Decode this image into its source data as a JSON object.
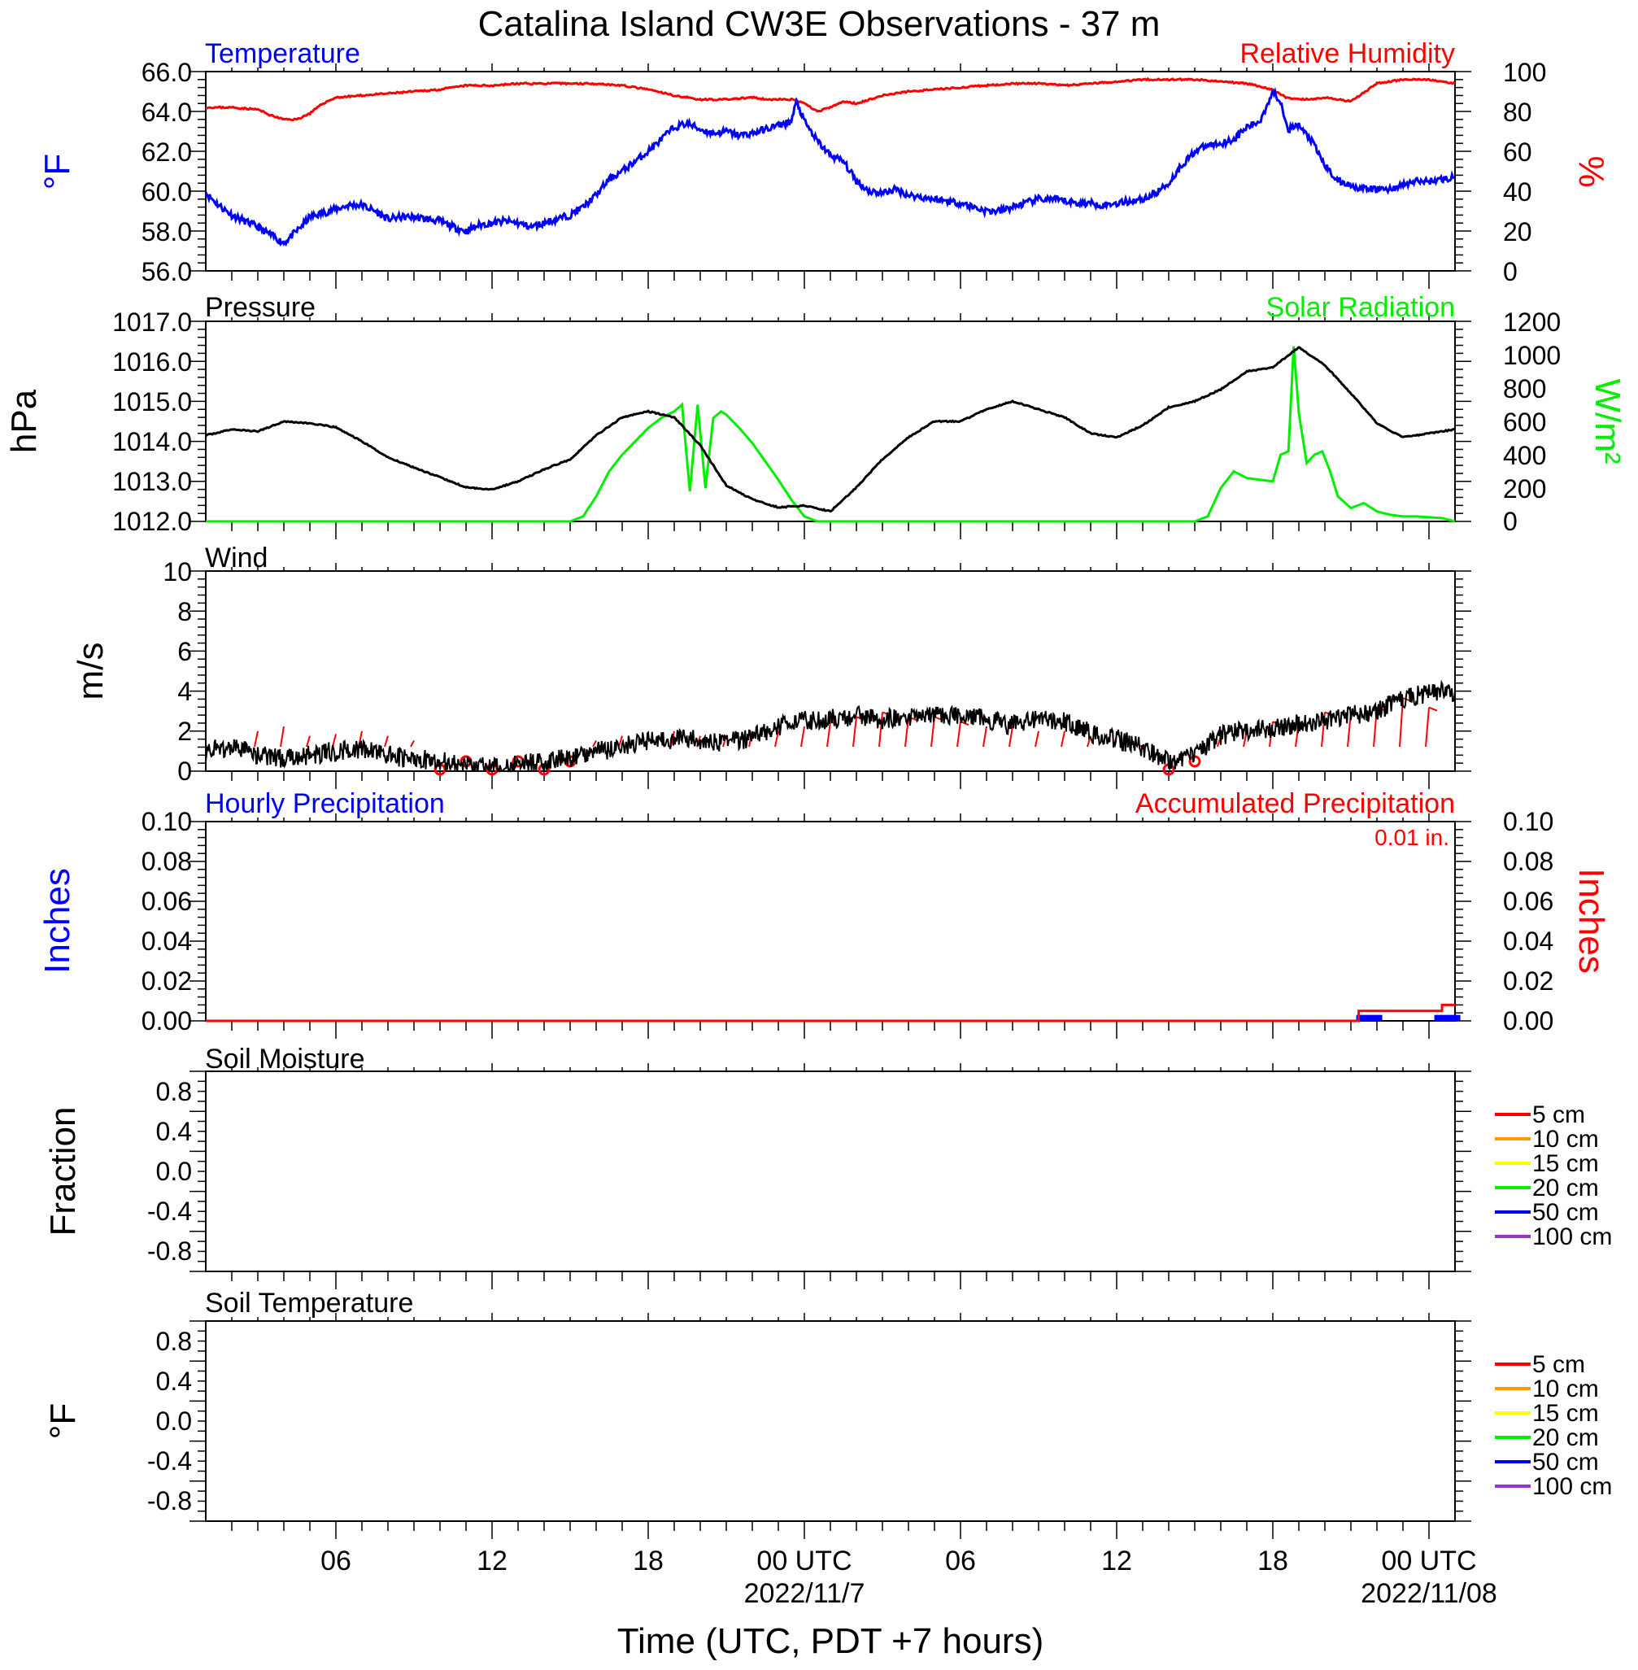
{
  "title": "Catalina Island CW3E Observations - 37 m",
  "x_axis": {
    "label": "Time (UTC, PDT +7 hours)",
    "tick_labels": [
      "06",
      "12",
      "18",
      "00 UTC",
      "06",
      "12",
      "18",
      "00 UTC"
    ],
    "date_labels": [
      "2022/11/7",
      "2022/11/08"
    ]
  },
  "colors": {
    "temperature": "#0000ff",
    "humidity": "#ff0000",
    "pressure": "#000000",
    "solar": "#00ee00",
    "wind": "#000000",
    "barb": "#ff0000",
    "hourly_precip": "#0000ff",
    "accum_precip": "#ff0000"
  },
  "panels": {
    "temp": {
      "left_title": "Temperature",
      "right_title": "Relative Humidity",
      "left_unit": "°F",
      "right_unit": "%",
      "left_ticks": [
        "66.0",
        "64.0",
        "62.0",
        "60.0",
        "58.0",
        "56.0"
      ],
      "right_ticks": [
        "100",
        "80",
        "60",
        "40",
        "20",
        "0"
      ]
    },
    "pressure": {
      "left_title": "Pressure",
      "right_title": "Solar Radiation",
      "left_unit": "hPa",
      "right_unit": "W/m²",
      "left_ticks": [
        "1017.0",
        "1016.0",
        "1015.0",
        "1014.0",
        "1013.0",
        "1012.0"
      ],
      "right_ticks": [
        "1200",
        "1000",
        "800",
        "600",
        "400",
        "200",
        "0"
      ]
    },
    "wind": {
      "left_title": "Wind",
      "left_unit": "m/s",
      "left_ticks": [
        "10",
        "8",
        "6",
        "4",
        "2",
        "0"
      ]
    },
    "precip": {
      "left_title": "Hourly Precipitation",
      "right_title": "Accumulated Precipitation",
      "left_unit": "Inches",
      "right_unit": "Inches",
      "total_label": "0.01 in.",
      "left_ticks": [
        "0.10",
        "0.08",
        "0.06",
        "0.04",
        "0.02",
        "0.00"
      ],
      "right_ticks": [
        "0.10",
        "0.08",
        "0.06",
        "0.04",
        "0.02",
        "0.00"
      ]
    },
    "soil_moisture": {
      "left_title": "Soil Moisture",
      "left_unit": "Fraction",
      "left_ticks": [
        "0.8",
        "0.4",
        "0.0",
        "-0.4",
        "-0.8"
      ],
      "legend": [
        "5 cm",
        "10 cm",
        "15 cm",
        "20 cm",
        "50 cm",
        "100 cm"
      ]
    },
    "soil_temp": {
      "left_title": "Soil Temperature",
      "left_unit": "°F",
      "left_ticks": [
        "0.8",
        "0.4",
        "0.0",
        "-0.4",
        "-0.8"
      ],
      "legend": [
        "5 cm",
        "10 cm",
        "15 cm",
        "20 cm",
        "50 cm",
        "100 cm"
      ]
    }
  },
  "legend_colors": [
    "#ff0000",
    "#ff9900",
    "#ffff00",
    "#00ee00",
    "#0000ee",
    "#9933cc"
  ],
  "chart_data": [
    {
      "type": "line",
      "title": "Temperature",
      "x_unit": "hours since 2022-11-06 00 UTC",
      "xlim": [
        1,
        49
      ],
      "ylim": [
        56,
        66
      ],
      "ylabel": "°F",
      "series": [
        {
          "name": "Temperature",
          "x": [
            1,
            1.5,
            2,
            2.5,
            3,
            3.5,
            4,
            4.5,
            5,
            5.5,
            6,
            6.5,
            7,
            7.5,
            8,
            8.5,
            9,
            9.5,
            10,
            10.5,
            11,
            11.5,
            12,
            12.5,
            13,
            13.5,
            14,
            14.5,
            15,
            15.5,
            16,
            16.5,
            17,
            17.5,
            18,
            18.5,
            19,
            19.5,
            20,
            20.5,
            21,
            21.5,
            22,
            22.5,
            23,
            23.5,
            23.7,
            24,
            24.5,
            25,
            25.5,
            26,
            26.5,
            27,
            27.5,
            28,
            28.5,
            29,
            29.5,
            30,
            30.5,
            31,
            31.5,
            32,
            32.5,
            33,
            33.5,
            34,
            34.5,
            35,
            35.5,
            36,
            36.5,
            37,
            37.5,
            38,
            38.5,
            39,
            39.5,
            40,
            40.5,
            41,
            41.5,
            42,
            42.3,
            42.6,
            43,
            43.5,
            44,
            44.5,
            45,
            45.5,
            46,
            46.5,
            47,
            47.5,
            48,
            48.5,
            49
          ],
          "values": [
            59.9,
            59.3,
            58.8,
            58.5,
            58.2,
            57.8,
            57.4,
            58.0,
            58.7,
            58.9,
            59.1,
            59.3,
            59.3,
            59.0,
            58.6,
            58.7,
            58.7,
            58.6,
            58.5,
            58.2,
            58.0,
            58.3,
            58.4,
            58.5,
            58.4,
            58.2,
            58.4,
            58.6,
            58.8,
            59.2,
            59.8,
            60.6,
            61.0,
            61.5,
            62.0,
            62.6,
            63.2,
            63.4,
            63.1,
            62.9,
            63.0,
            62.8,
            62.9,
            63.1,
            63.3,
            63.5,
            64.5,
            63.5,
            62.5,
            61.8,
            61.5,
            60.5,
            60.0,
            59.9,
            60.1,
            59.8,
            59.7,
            59.6,
            59.5,
            59.4,
            59.2,
            59.0,
            59.0,
            59.2,
            59.4,
            59.6,
            59.6,
            59.5,
            59.4,
            59.4,
            59.3,
            59.4,
            59.5,
            59.6,
            59.9,
            60.4,
            61.3,
            62.0,
            62.3,
            62.4,
            62.6,
            63.2,
            63.5,
            65.0,
            64.5,
            63.1,
            63.3,
            62.5,
            61.3,
            60.5,
            60.3,
            60.1,
            60.1,
            60.1,
            60.3,
            60.5,
            60.5,
            60.6,
            60.7
          ]
        }
      ]
    },
    {
      "type": "line",
      "title": "Relative Humidity",
      "x_unit": "hours since 2022-11-06 00 UTC",
      "xlim": [
        1,
        49
      ],
      "ylim": [
        0,
        100
      ],
      "ylabel": "%",
      "series": [
        {
          "name": "Relative Humidity",
          "x": [
            1,
            2,
            3,
            3.5,
            4,
            4.5,
            5,
            5.5,
            6,
            7,
            8,
            9,
            10,
            11,
            12,
            13,
            14,
            15,
            16,
            17,
            18,
            19,
            20,
            21,
            22,
            22.5,
            23,
            23.5,
            24,
            24.5,
            25,
            25.5,
            26,
            27,
            28,
            29,
            30,
            31,
            32,
            33,
            34,
            35,
            36,
            37,
            38,
            39,
            40,
            41,
            42,
            42.5,
            43,
            43.5,
            44,
            44.5,
            45,
            46,
            47,
            48,
            49
          ],
          "values": [
            82,
            82,
            81,
            78,
            76,
            76,
            79,
            84,
            87,
            88,
            89,
            90,
            91,
            93,
            93,
            94,
            94,
            94,
            94,
            93,
            91,
            88,
            86,
            86,
            87,
            86,
            86,
            86,
            84,
            80,
            82,
            85,
            84,
            88,
            90,
            91,
            92,
            93,
            94,
            94,
            93,
            94,
            95,
            96,
            96,
            96,
            95,
            94,
            91,
            87,
            86,
            86,
            87,
            86,
            85,
            94,
            96,
            96,
            94
          ]
        }
      ]
    },
    {
      "type": "line",
      "title": "Pressure",
      "x_unit": "hours since 2022-11-06 00 UTC",
      "xlim": [
        1,
        49
      ],
      "ylim": [
        1012,
        1017
      ],
      "ylabel": "hPa",
      "series": [
        {
          "name": "Pressure",
          "x": [
            1,
            2,
            3,
            4,
            5,
            6,
            7,
            8,
            9,
            10,
            11,
            12,
            13,
            14,
            15,
            16,
            17,
            18,
            19,
            20,
            21,
            22,
            23,
            24,
            25,
            26,
            27,
            28,
            29,
            30,
            31,
            32,
            33,
            34,
            35,
            36,
            37,
            38,
            39,
            40,
            41,
            42,
            43,
            44,
            45,
            46,
            47,
            48,
            49
          ],
          "values": [
            1014.15,
            1014.3,
            1014.25,
            1014.5,
            1014.45,
            1014.35,
            1014.0,
            1013.6,
            1013.35,
            1013.1,
            1012.85,
            1012.8,
            1013.0,
            1013.3,
            1013.55,
            1014.15,
            1014.6,
            1014.75,
            1014.6,
            1013.9,
            1012.9,
            1012.55,
            1012.35,
            1012.4,
            1012.25,
            1012.85,
            1013.55,
            1014.1,
            1014.5,
            1014.5,
            1014.8,
            1015.0,
            1014.8,
            1014.6,
            1014.2,
            1014.1,
            1014.4,
            1014.85,
            1015.0,
            1015.3,
            1015.75,
            1015.85,
            1016.35,
            1015.9,
            1015.2,
            1014.45,
            1014.1,
            1014.2,
            1014.3
          ]
        }
      ]
    },
    {
      "type": "line",
      "title": "Solar Radiation",
      "x_unit": "hours since 2022-11-06 00 UTC",
      "xlim": [
        1,
        49
      ],
      "ylim": [
        0,
        1200
      ],
      "ylabel": "W/m²",
      "series": [
        {
          "name": "Solar Radiation",
          "x": [
            1,
            15,
            15.5,
            16,
            16.5,
            17,
            17.5,
            18,
            18.5,
            19,
            19.3,
            19.6,
            19.9,
            20.2,
            20.5,
            20.8,
            21,
            21.5,
            22,
            22.5,
            23,
            23.5,
            24,
            24.5,
            25,
            39,
            39.5,
            40,
            40.5,
            41,
            41.5,
            42,
            42.3,
            42.6,
            42.8,
            43,
            43.3,
            43.6,
            43.9,
            44.2,
            44.5,
            45,
            45.5,
            46,
            46.5,
            47,
            47.5,
            48,
            48.5,
            49
          ],
          "values": [
            0,
            0,
            30,
            150,
            300,
            400,
            480,
            560,
            620,
            660,
            700,
            180,
            700,
            200,
            620,
            660,
            640,
            560,
            470,
            360,
            250,
            130,
            30,
            0,
            0,
            0,
            30,
            200,
            300,
            260,
            250,
            240,
            400,
            420,
            1050,
            650,
            350,
            400,
            420,
            300,
            150,
            80,
            110,
            60,
            40,
            30,
            30,
            25,
            20,
            0
          ]
        }
      ]
    },
    {
      "type": "line",
      "title": "Wind",
      "x_unit": "hours since 2022-11-06 00 UTC",
      "xlim": [
        1,
        49
      ],
      "ylim": [
        0,
        10
      ],
      "ylabel": "m/s",
      "series": [
        {
          "name": "Wind speed",
          "x": [
            1,
            2,
            3,
            4,
            5,
            6,
            7,
            8,
            9,
            10,
            11,
            12,
            13,
            14,
            15,
            16,
            17,
            18,
            19,
            20,
            21,
            22,
            23,
            24,
            25,
            26,
            27,
            28,
            29,
            30,
            31,
            32,
            33,
            34,
            35,
            36,
            37,
            38,
            39,
            40,
            41,
            42,
            43,
            44,
            45,
            46,
            47,
            48,
            49
          ],
          "values": [
            1.0,
            1.2,
            0.8,
            0.6,
            0.8,
            1.0,
            1.1,
            0.8,
            0.6,
            0.5,
            0.3,
            0.2,
            0.3,
            0.5,
            0.7,
            1.0,
            1.2,
            1.5,
            1.6,
            1.6,
            1.4,
            1.7,
            2.2,
            2.5,
            2.6,
            2.8,
            2.6,
            2.7,
            2.9,
            2.8,
            2.6,
            2.3,
            2.7,
            2.5,
            1.9,
            1.6,
            1.2,
            0.5,
            0.8,
            1.8,
            2.0,
            2.1,
            2.4,
            2.5,
            2.8,
            3.0,
            3.6,
            3.9,
            4.0
          ]
        }
      ]
    },
    {
      "type": "bar",
      "title": "Hourly Precipitation",
      "x_unit": "hours since 2022-11-06 00 UTC",
      "xlim": [
        1,
        49
      ],
      "ylim": [
        0,
        0.1
      ],
      "ylabel": "Inches",
      "categories": [
        45.3,
        48.3
      ],
      "values": [
        0.003,
        0.003
      ]
    },
    {
      "type": "line",
      "title": "Accumulated Precipitation",
      "x_unit": "hours since 2022-11-06 00 UTC",
      "xlim": [
        1,
        49
      ],
      "ylim": [
        0,
        0.1
      ],
      "ylabel": "Inches",
      "series": [
        {
          "name": "Accumulated Precipitation",
          "x": [
            1,
            45.3,
            45.3,
            48.5,
            48.5,
            49
          ],
          "values": [
            0,
            0,
            0.005,
            0.005,
            0.008,
            0.008
          ]
        }
      ]
    }
  ],
  "wind_barbs": {
    "x": [
      3,
      4,
      5,
      6,
      7,
      8,
      9,
      10,
      11,
      12,
      13,
      14,
      15,
      16,
      17,
      18,
      19,
      20,
      21,
      22,
      23,
      24,
      25,
      26,
      27,
      28,
      29,
      30,
      31,
      32,
      33,
      34,
      35,
      36,
      37,
      38,
      39,
      40,
      41,
      42,
      43,
      44,
      45,
      46,
      47,
      48
    ],
    "speed": [
      2.5,
      3.0,
      2.0,
      2.2,
      2.5,
      2.0,
      1.5,
      0,
      0,
      0,
      0,
      0,
      0,
      1.5,
      2.0,
      2.0,
      2.5,
      2.0,
      2.0,
      2.5,
      2.5,
      3.0,
      3.5,
      4.0,
      4.5,
      4.0,
      4.0,
      3.5,
      3.0,
      3.0,
      2.5,
      2.5,
      2.0,
      2.0,
      1.0,
      0,
      0,
      2.0,
      2.5,
      3.5,
      3.5,
      4.5,
      4.5,
      5.0,
      6.0,
      5.0
    ]
  }
}
